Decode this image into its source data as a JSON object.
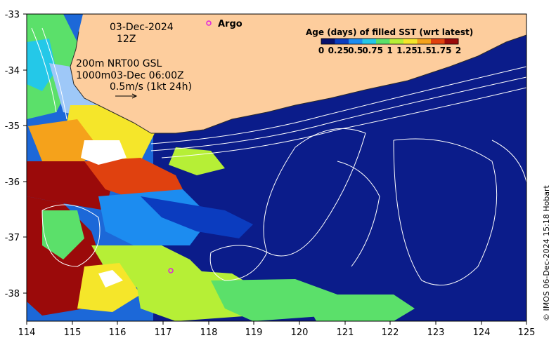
{
  "map": {
    "date_label": "03-Dec-2024",
    "time_label": "12Z",
    "legend_lines": [
      "200m  NRT00 GSL",
      "1000m03-Dec 06:00Z",
      "0.5m/s (1kt 24h)"
    ],
    "argo_label": "Argo",
    "credit": "© IMOS 06-Dec-2024 15:18 Hobart",
    "lon_ticks": [
      "114",
      "115",
      "116",
      "117",
      "118",
      "119",
      "120",
      "121",
      "122",
      "123",
      "124",
      "125"
    ],
    "lat_ticks": [
      "-33",
      "-34",
      "-35",
      "-36",
      "-37",
      "-38"
    ],
    "lon_range": [
      114,
      125
    ],
    "lat_range": [
      -38.5,
      -33
    ],
    "colors": {
      "land": "#fdcd9d",
      "ocean_base": "#0b1c8a",
      "contour": "#ffffff"
    }
  },
  "colorbar": {
    "title": "Age (days) of filled SST (wrt latest)",
    "ticks": [
      "0",
      "0.25",
      "0.5",
      "0.75",
      "1",
      "1.25",
      "1.5",
      "1.75",
      "2"
    ],
    "range": [
      0,
      2
    ],
    "colors": [
      "#08116d",
      "#0b3cbf",
      "#1c8cf0",
      "#24c8e8",
      "#5be06a",
      "#b6ef36",
      "#f5e62a",
      "#f5a21b",
      "#e0410f",
      "#9b0a0a"
    ]
  }
}
